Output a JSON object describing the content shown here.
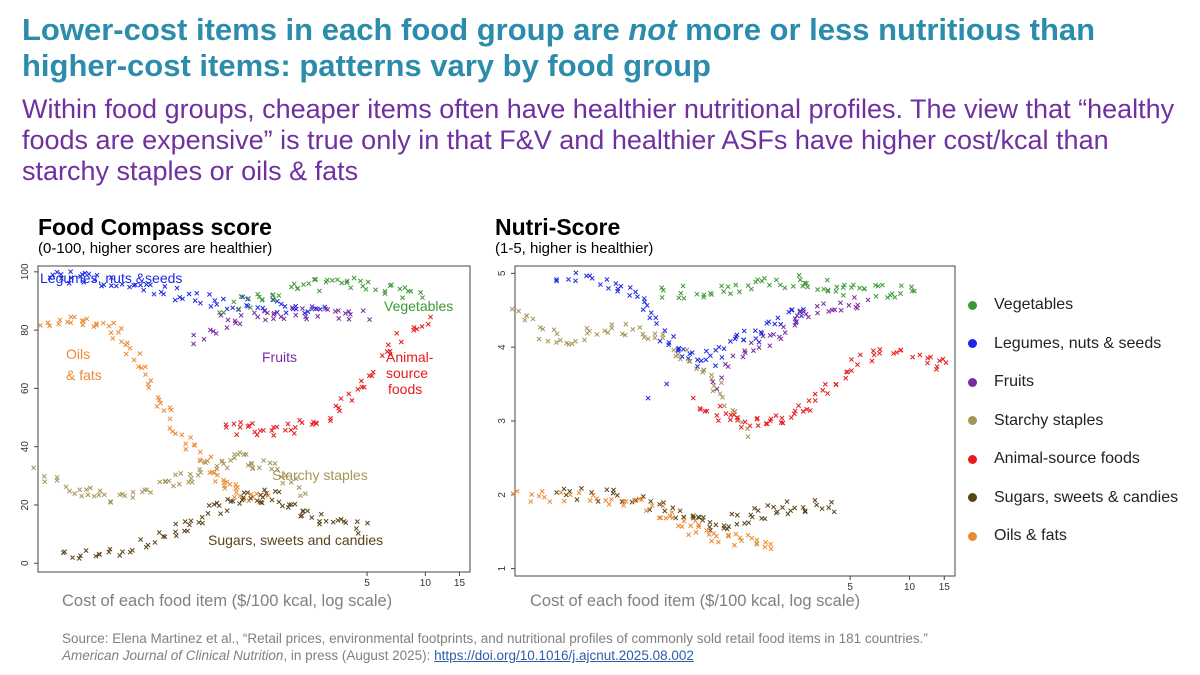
{
  "slide": {
    "title_part1": "Lower-cost items in each food group are ",
    "title_emph": "not",
    "title_part2": " more or less nutritious than higher-cost items: patterns vary by food group",
    "subtitle": "Within food groups, cheaper items often have healthier nutritional profiles. The view that “healthy foods are expensive” is true only in that F&V and healthier ASFs have higher cost/kcal than starchy staples or oils & fats"
  },
  "colors": {
    "title": "#2b8cab",
    "subtitle": "#7030a0",
    "vegetables": "#3a9a33",
    "legumes": "#1a27e6",
    "fruits": "#7a2aa3",
    "starchy": "#a59557",
    "animal": "#e8191c",
    "sugars": "#5a4419",
    "oils": "#ec8a33"
  },
  "chart_data": [
    {
      "type": "scatter",
      "title": "Food Compass score",
      "subtitle": "(0-100, higher scores are healthier)",
      "xlabel": "Cost of each food item ($/100 kcal, log scale)",
      "xscale": "log",
      "xlim": [
        0.1,
        17
      ],
      "ylim": [
        -3,
        102
      ],
      "xticks": [
        5,
        10,
        15
      ],
      "yticks": [
        0,
        20,
        40,
        60,
        80,
        100
      ],
      "marker": "x",
      "legend": "none",
      "annotations": [
        {
          "text": "Legumes, nuts &seeds",
          "group": "legumes"
        },
        {
          "text": "Vegetables",
          "group": "vegetables"
        },
        {
          "text": "Oils",
          "group": "oils"
        },
        {
          "text": "& fats",
          "group": "oils"
        },
        {
          "text": "Fruits",
          "group": "fruits"
        },
        {
          "text": "Animal-",
          "group": "animal"
        },
        {
          "text": "source",
          "group": "animal"
        },
        {
          "text": "foods",
          "group": "animal"
        },
        {
          "text": "Starchy staples",
          "group": "starchy"
        },
        {
          "text": "Sugars, sweets and candies",
          "group": "sugars"
        }
      ],
      "series": [
        {
          "group": "legumes",
          "color": "#1a27e6",
          "points": [
            [
              0.11,
              99
            ],
            [
              0.15,
              98
            ],
            [
              0.2,
              97
            ],
            [
              0.28,
              95
            ],
            [
              0.4,
              94
            ],
            [
              0.55,
              92
            ],
            [
              0.8,
              90
            ],
            [
              1.1,
              89
            ],
            [
              1.6,
              88
            ],
            [
              2.2,
              87
            ],
            [
              3,
              86
            ]
          ]
        },
        {
          "group": "vegetables",
          "color": "#3a9a33",
          "points": [
            [
              0.9,
              88
            ],
            [
              1.3,
              90
            ],
            [
              1.8,
              93
            ],
            [
              2.5,
              95
            ],
            [
              3.5,
              96
            ],
            [
              5,
              96
            ],
            [
              7,
              94
            ],
            [
              10,
              92
            ]
          ]
        },
        {
          "group": "fruits",
          "color": "#7a2aa3",
          "points": [
            [
              0.6,
              74
            ],
            [
              0.9,
              83
            ],
            [
              1.3,
              85
            ],
            [
              1.8,
              86
            ],
            [
              2.5,
              86
            ],
            [
              3.5,
              85
            ],
            [
              5,
              85
            ]
          ]
        },
        {
          "group": "oils",
          "color": "#ec8a33",
          "points": [
            [
              0.1,
              82
            ],
            [
              0.15,
              84
            ],
            [
              0.2,
              83
            ],
            [
              0.25,
              80
            ],
            [
              0.3,
              73
            ],
            [
              0.38,
              62
            ],
            [
              0.45,
              52
            ],
            [
              0.55,
              44
            ],
            [
              0.7,
              36
            ],
            [
              0.85,
              30
            ],
            [
              1.0,
              26
            ],
            [
              1.2,
              23
            ],
            [
              1.5,
              21
            ]
          ]
        },
        {
          "group": "animal",
          "color": "#e8191c",
          "points": [
            [
              0.9,
              47
            ],
            [
              1.2,
              46
            ],
            [
              1.6,
              46
            ],
            [
              2.2,
              46
            ],
            [
              3,
              50
            ],
            [
              4,
              57
            ],
            [
              5.5,
              67
            ],
            [
              7.5,
              78
            ],
            [
              11,
              83
            ]
          ]
        },
        {
          "group": "starchy",
          "color": "#a59557",
          "points": [
            [
              0.1,
              32
            ],
            [
              0.15,
              26
            ],
            [
              0.2,
              23
            ],
            [
              0.28,
              23
            ],
            [
              0.4,
              26
            ],
            [
              0.55,
              29
            ],
            [
              0.7,
              32
            ],
            [
              0.9,
              35
            ],
            [
              1.1,
              36
            ],
            [
              1.4,
              34
            ],
            [
              1.8,
              30
            ],
            [
              2.5,
              24
            ]
          ]
        },
        {
          "group": "sugars",
          "color": "#5a4419",
          "points": [
            [
              0.13,
              2
            ],
            [
              0.2,
              3
            ],
            [
              0.3,
              5
            ],
            [
              0.45,
              9
            ],
            [
              0.6,
              14
            ],
            [
              0.8,
              18
            ],
            [
              1.0,
              21
            ],
            [
              1.3,
              23
            ],
            [
              1.6,
              23
            ],
            [
              2.0,
              20
            ],
            [
              2.6,
              16
            ],
            [
              3.5,
              13
            ],
            [
              5,
              12
            ]
          ]
        }
      ]
    },
    {
      "type": "scatter",
      "title": "Nutri-Score",
      "subtitle": "(1-5, higher is healthier)",
      "xlabel": "Cost of each food item ($/100 kcal, log scale)",
      "xscale": "log",
      "xlim": [
        0.1,
        17
      ],
      "ylim": [
        0.9,
        5.1
      ],
      "xticks": [
        5,
        10,
        15
      ],
      "yticks": [
        1,
        2,
        3,
        4,
        5
      ],
      "marker": "x",
      "legend": "right",
      "series": [
        {
          "name": "Vegetables",
          "color": "#3a9a33",
          "points": [
            [
              0.5,
              4.7
            ],
            [
              0.8,
              4.75
            ],
            [
              1.2,
              4.8
            ],
            [
              1.7,
              4.85
            ],
            [
              2.4,
              4.9
            ],
            [
              3.3,
              4.85
            ],
            [
              4.5,
              4.8
            ],
            [
              6,
              4.75
            ],
            [
              8,
              4.75
            ],
            [
              11,
              4.8
            ]
          ]
        },
        {
          "name": "Legumes, nuts & seeds",
          "color": "#1a27e6",
          "points": [
            [
              0.15,
              4.95
            ],
            [
              0.25,
              4.9
            ],
            [
              0.35,
              4.8
            ],
            [
              0.45,
              4.6
            ],
            [
              0.55,
              4.2
            ],
            [
              0.7,
              3.9
            ],
            [
              0.9,
              3.8
            ],
            [
              1.2,
              4.0
            ],
            [
              1.6,
              4.2
            ],
            [
              2.2,
              4.4
            ],
            [
              3,
              4.5
            ],
            [
              0.4,
              3.2
            ]
          ]
        },
        {
          "name": "Fruits",
          "color": "#7a2aa3",
          "points": [
            [
              1.0,
              3.5
            ],
            [
              1.4,
              3.9
            ],
            [
              1.9,
              4.1
            ],
            [
              2.5,
              4.3
            ],
            [
              3.2,
              4.5
            ],
            [
              4.5,
              4.6
            ],
            [
              6,
              4.6
            ]
          ]
        },
        {
          "name": "Starchy staples",
          "color": "#a59557",
          "points": [
            [
              0.1,
              4.6
            ],
            [
              0.13,
              4.2
            ],
            [
              0.18,
              4.1
            ],
            [
              0.25,
              4.2
            ],
            [
              0.35,
              4.25
            ],
            [
              0.5,
              4.2
            ],
            [
              0.7,
              3.9
            ],
            [
              0.9,
              3.6
            ],
            [
              1.1,
              3.4
            ],
            [
              1.6,
              2.7
            ]
          ]
        },
        {
          "name": "Animal-source foods",
          "color": "#e8191c",
          "points": [
            [
              0.8,
              3.3
            ],
            [
              1.1,
              3.1
            ],
            [
              1.4,
              3.0
            ],
            [
              1.8,
              2.95
            ],
            [
              2.4,
              3.0
            ],
            [
              3,
              3.2
            ],
            [
              4,
              3.5
            ],
            [
              5.5,
              3.8
            ],
            [
              7.5,
              4.0
            ],
            [
              12,
              3.8
            ],
            [
              16,
              3.7
            ]
          ]
        },
        {
          "name": "Sugars, sweets & candies",
          "color": "#5a4419",
          "points": [
            [
              0.15,
              2.0
            ],
            [
              0.25,
              2.0
            ],
            [
              0.4,
              1.95
            ],
            [
              0.6,
              1.8
            ],
            [
              0.8,
              1.65
            ],
            [
              1.0,
              1.6
            ],
            [
              1.3,
              1.65
            ],
            [
              1.7,
              1.75
            ],
            [
              2.2,
              1.8
            ],
            [
              3,
              1.85
            ],
            [
              4.5,
              1.85
            ]
          ]
        },
        {
          "name": "Oils & fats",
          "color": "#ec8a33",
          "points": [
            [
              0.1,
              2.0
            ],
            [
              0.15,
              2.0
            ],
            [
              0.25,
              1.95
            ],
            [
              0.4,
              1.9
            ],
            [
              0.55,
              1.75
            ],
            [
              0.7,
              1.6
            ],
            [
              0.9,
              1.5
            ],
            [
              1.2,
              1.4
            ],
            [
              1.6,
              1.35
            ],
            [
              2.1,
              1.35
            ]
          ]
        }
      ]
    }
  ],
  "source": {
    "line1": "Source: Elena Martinez et al., “Retail prices, environmental footprints, and nutritional profiles of commonly sold retail food items in 181 countries.”",
    "journal": "American Journal of Clinical Nutrition",
    "rest": ", in press (August 2025): ",
    "link": "https://doi.org/10.1016/j.ajcnut.2025.08.002"
  }
}
